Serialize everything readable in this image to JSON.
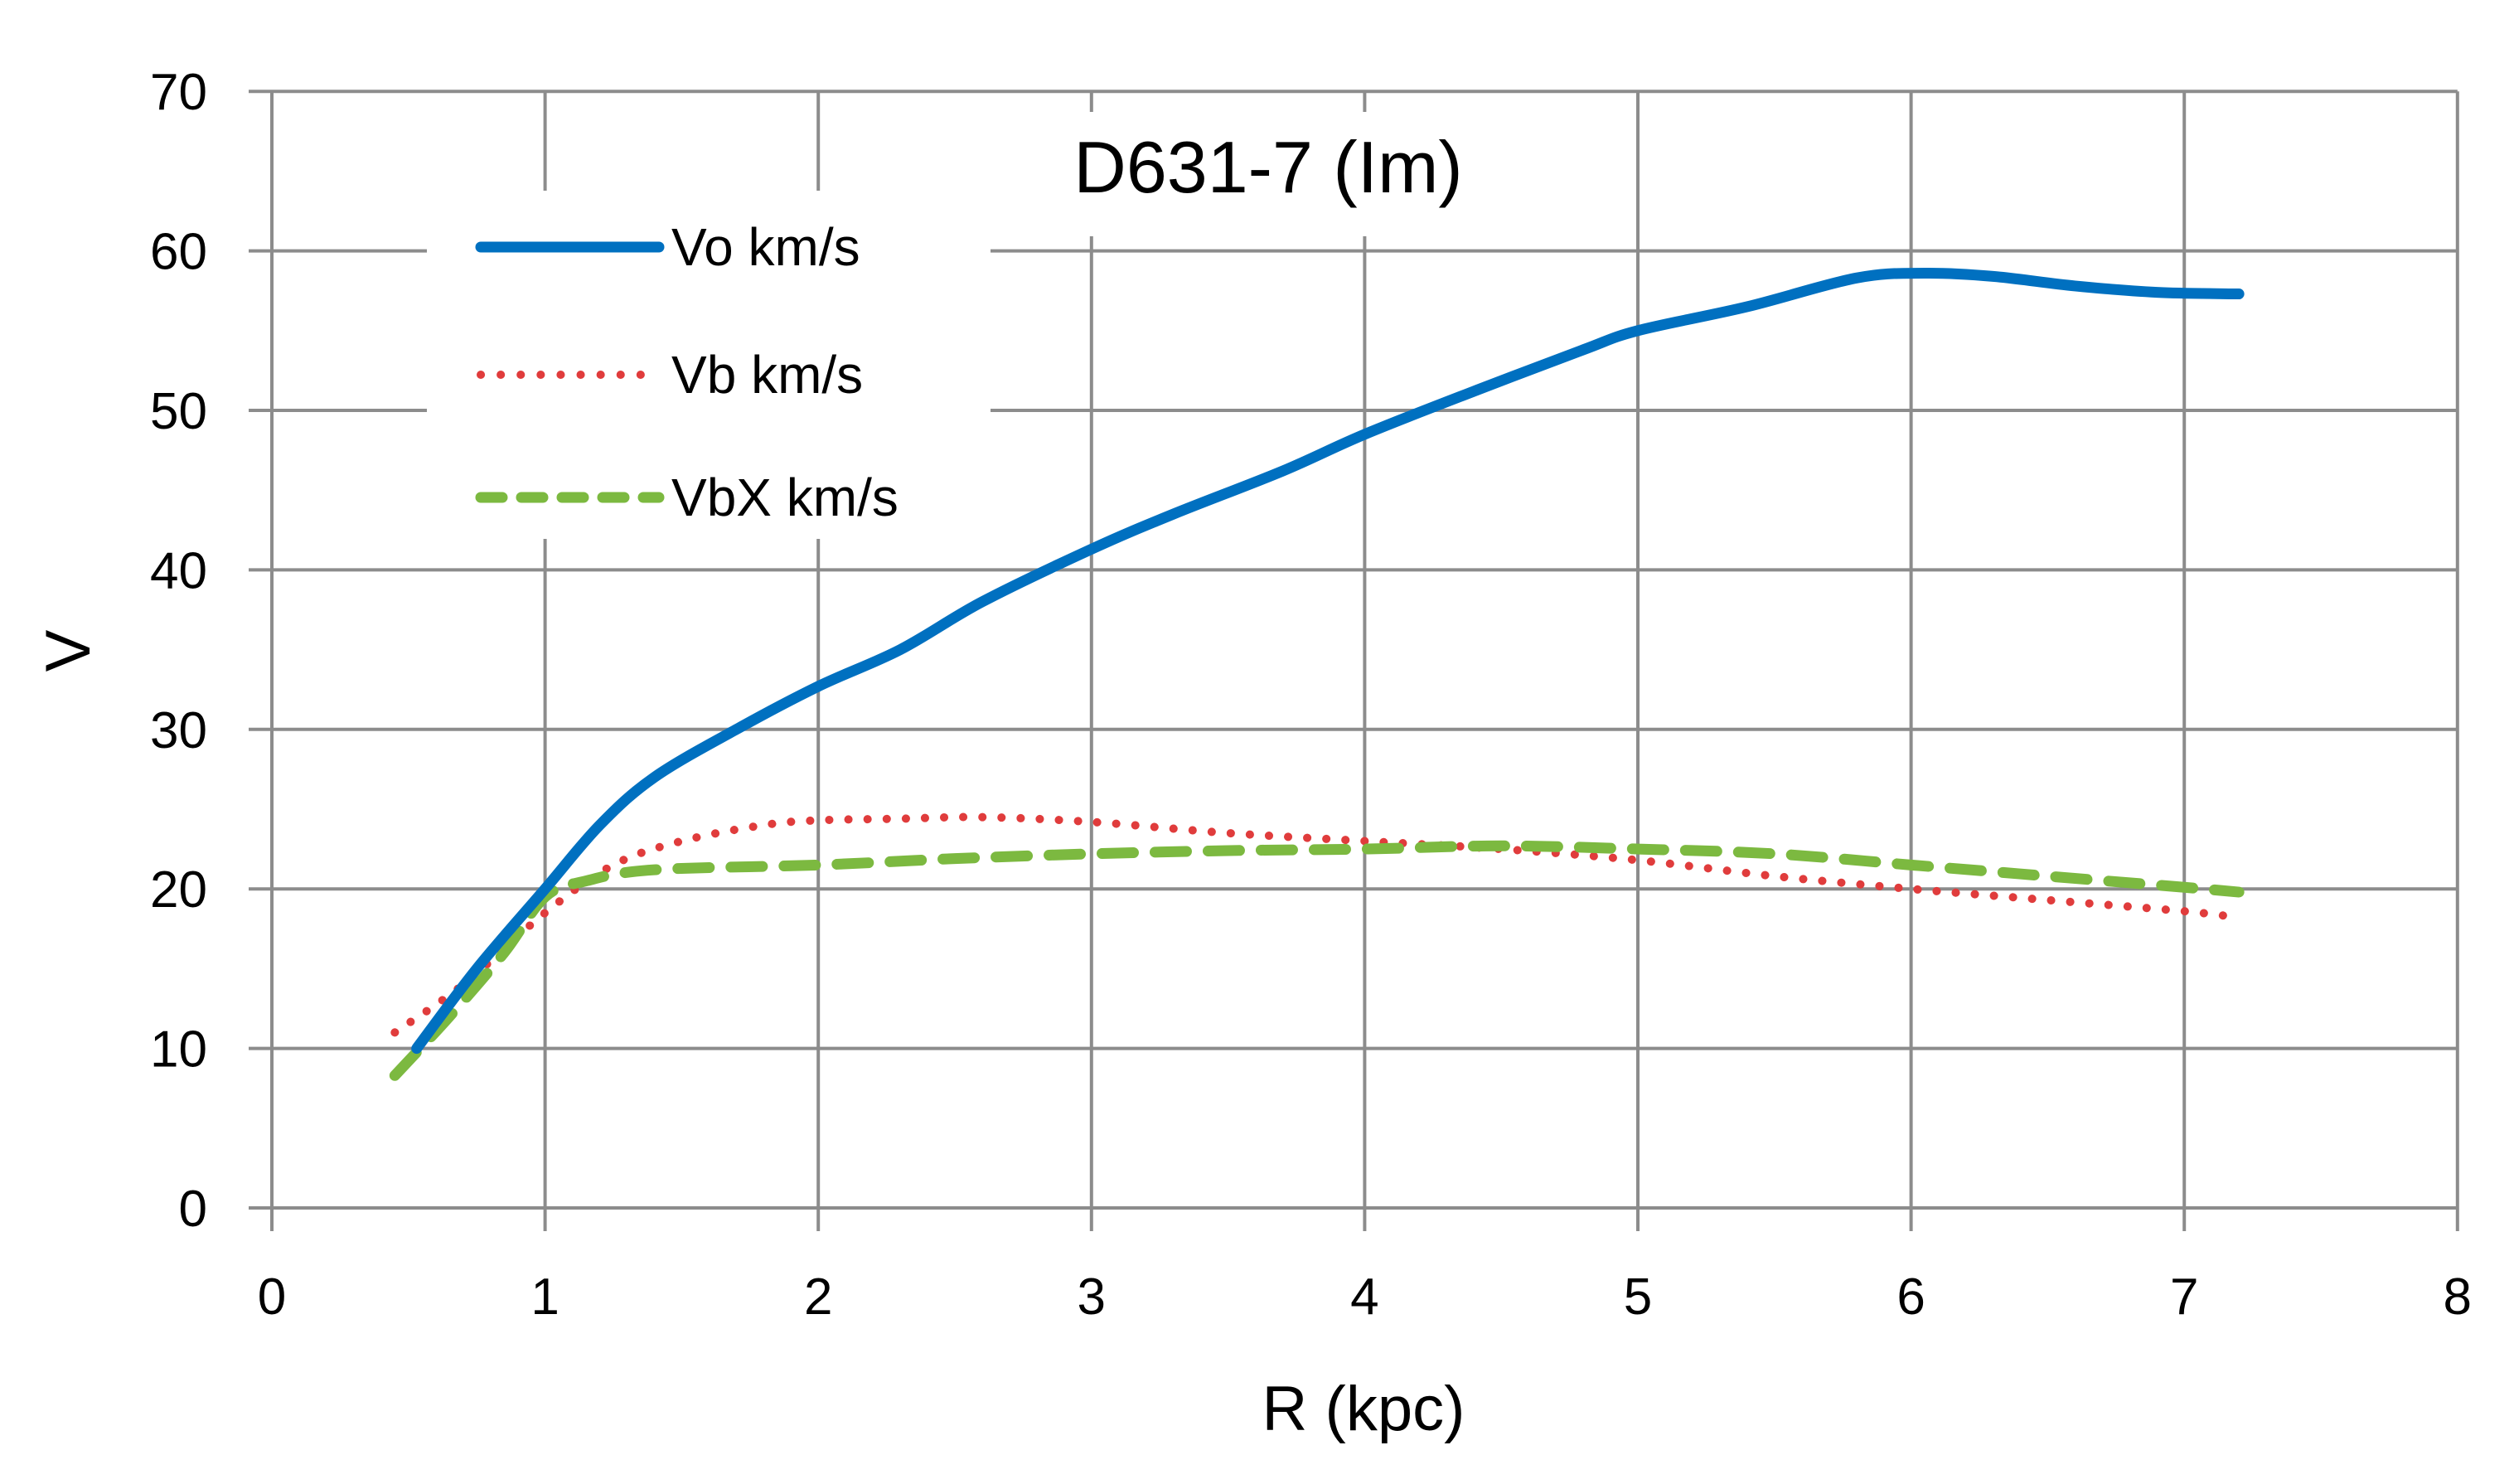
{
  "chart_data": {
    "type": "line",
    "title": "D631-7 (Im)",
    "xlabel": "R (kpc)",
    "ylabel": "V",
    "xlim": [
      0,
      8
    ],
    "ylim": [
      0,
      70
    ],
    "xticks": [
      0,
      1,
      2,
      3,
      4,
      5,
      6,
      7,
      8
    ],
    "yticks": [
      0,
      10,
      20,
      30,
      40,
      50,
      60,
      70
    ],
    "grid": true,
    "legend_position": "upper-left",
    "series": [
      {
        "name": "Vo km/s",
        "color": "#0070C0",
        "style": "solid",
        "x": [
          0.53,
          0.75,
          1.0,
          1.2,
          1.4,
          1.7,
          2.0,
          2.3,
          2.6,
          3.0,
          3.3,
          3.7,
          4.0,
          4.4,
          4.8,
          5.0,
          5.4,
          5.8,
          6.05,
          6.3,
          6.6,
          6.9,
          7.2
        ],
        "y": [
          10,
          15,
          20,
          24,
          27,
          30,
          32.7,
          35,
          38,
          41.3,
          43.5,
          46.2,
          48.5,
          51.2,
          53.8,
          55,
          56.5,
          58.3,
          58.6,
          58.4,
          57.8,
          57.4,
          57.3
        ]
      },
      {
        "name": "Vb km/s",
        "color": "#E03C3C",
        "style": "dotted",
        "x": [
          0.45,
          0.7,
          1.0,
          1.25,
          1.5,
          1.8,
          2.0,
          2.3,
          2.6,
          3.0,
          3.5,
          4.0,
          4.5,
          5.0,
          5.5,
          6.0,
          6.5,
          7.0,
          7.2
        ],
        "y": [
          11,
          14,
          18.5,
          21.5,
          23,
          24,
          24.3,
          24.4,
          24.5,
          24.2,
          23.5,
          23,
          22.5,
          21.8,
          20.8,
          20,
          19.3,
          18.6,
          18.2
        ]
      },
      {
        "name": "VbX km/s",
        "color": "#7CB940",
        "style": "dashed",
        "x": [
          0.45,
          0.65,
          0.85,
          1.0,
          1.15,
          1.4,
          2.0,
          2.5,
          3.0,
          3.5,
          4.0,
          4.5,
          5.0,
          5.5,
          6.0,
          6.5,
          7.0,
          7.2
        ],
        "y": [
          8.3,
          12,
          16,
          19.5,
          20.5,
          21.2,
          21.5,
          21.9,
          22.2,
          22.4,
          22.5,
          22.7,
          22.5,
          22.2,
          21.5,
          20.8,
          20.1,
          19.8
        ]
      }
    ]
  },
  "legend": {
    "items": [
      {
        "label": "Vo km/s"
      },
      {
        "label": "Vb km/s"
      },
      {
        "label": "VbX km/s"
      }
    ]
  },
  "axes": {
    "x_title": "R (kpc)",
    "y_title": "V",
    "x_tick_labels": [
      "0",
      "1",
      "2",
      "3",
      "4",
      "5",
      "6",
      "7",
      "8"
    ],
    "y_tick_labels": [
      "0",
      "10",
      "20",
      "30",
      "40",
      "50",
      "60",
      "70"
    ]
  },
  "title": "D631-7 (Im)",
  "colors": {
    "grid": "#8C8C8C",
    "background": "#FFFFFF"
  }
}
